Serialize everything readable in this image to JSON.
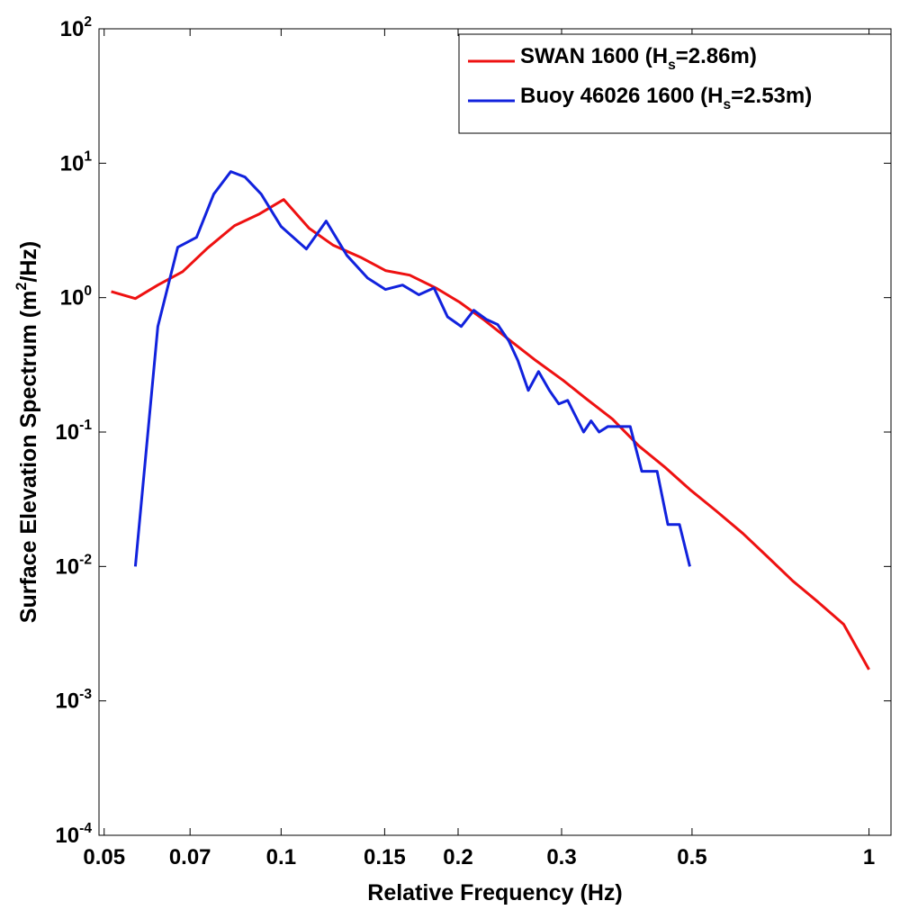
{
  "chart_data": {
    "type": "line",
    "xlabel": "Relative Frequency (Hz)",
    "ylabel": "Surface Elevation Spectrum (m^{2}/Hz)",
    "xscale": "log",
    "yscale": "log",
    "xlim": [
      0.049,
      1.09
    ],
    "ylim": [
      0.0001,
      100
    ],
    "xticks": [
      0.05,
      0.07,
      0.1,
      0.15,
      0.2,
      0.3,
      0.5,
      1
    ],
    "yticks": [
      {
        "value": 0.0001,
        "label": "10^{-4}"
      },
      {
        "value": 0.001,
        "label": "10^{-3}"
      },
      {
        "value": 0.01,
        "label": "10^{-2}"
      },
      {
        "value": 0.1,
        "label": "10^{-1}"
      },
      {
        "value": 1,
        "label": "10^{0}"
      },
      {
        "value": 10,
        "label": "10^{1}"
      },
      {
        "value": 100,
        "label": "10^{2}"
      }
    ],
    "legend": "upper right",
    "series": [
      {
        "name": "SWAN 1600 (H_{s}=2.86m)",
        "color": "#ee1111",
        "x": [
          0.0514,
          0.0565,
          0.0617,
          0.068,
          0.0749,
          0.0833,
          0.0919,
          0.101,
          0.1116,
          0.1227,
          0.1364,
          0.1505,
          0.1655,
          0.184,
          0.2011,
          0.2217,
          0.2456,
          0.2713,
          0.302,
          0.3297,
          0.3661,
          0.4064,
          0.4489,
          0.4957,
          0.5496,
          0.6103,
          0.6722,
          0.7419,
          0.8187,
          0.9056,
          1.0
        ],
        "values": [
          1.11,
          0.985,
          1.24,
          1.56,
          2.33,
          3.43,
          4.2,
          5.37,
          3.28,
          2.45,
          2.0,
          1.59,
          1.47,
          1.17,
          0.926,
          0.68,
          0.477,
          0.34,
          0.242,
          0.178,
          0.125,
          0.0785,
          0.0551,
          0.0374,
          0.0259,
          0.0176,
          0.0118,
          0.0078,
          0.00545,
          0.00371,
          0.00171
        ]
      },
      {
        "name": "Buoy 46026 1600 (H_{s}=2.53m)",
        "color": "#1122dd",
        "x": [
          0.0565,
          0.0617,
          0.0667,
          0.0718,
          0.0768,
          0.0821,
          0.0868,
          0.0925,
          0.1,
          0.1104,
          0.1193,
          0.1294,
          0.1403,
          0.1505,
          0.1609,
          0.1715,
          0.182,
          0.1919,
          0.2025,
          0.2127,
          0.2233,
          0.2336,
          0.2439,
          0.2528,
          0.2633,
          0.2741,
          0.286,
          0.2967,
          0.3072,
          0.327,
          0.3367,
          0.3475,
          0.3597,
          0.3925,
          0.4107,
          0.4361,
          0.4549,
          0.476,
          0.4957
        ],
        "values": [
          0.01,
          0.61,
          2.37,
          2.81,
          5.89,
          8.66,
          7.89,
          5.89,
          3.38,
          2.3,
          3.71,
          2.06,
          1.4,
          1.15,
          1.24,
          1.05,
          1.18,
          0.72,
          0.61,
          0.806,
          0.69,
          0.63,
          0.477,
          0.34,
          0.204,
          0.282,
          0.204,
          0.162,
          0.172,
          0.1,
          0.121,
          0.1,
          0.11,
          0.11,
          0.051,
          0.051,
          0.0205,
          0.0205,
          0.01
        ]
      }
    ]
  }
}
